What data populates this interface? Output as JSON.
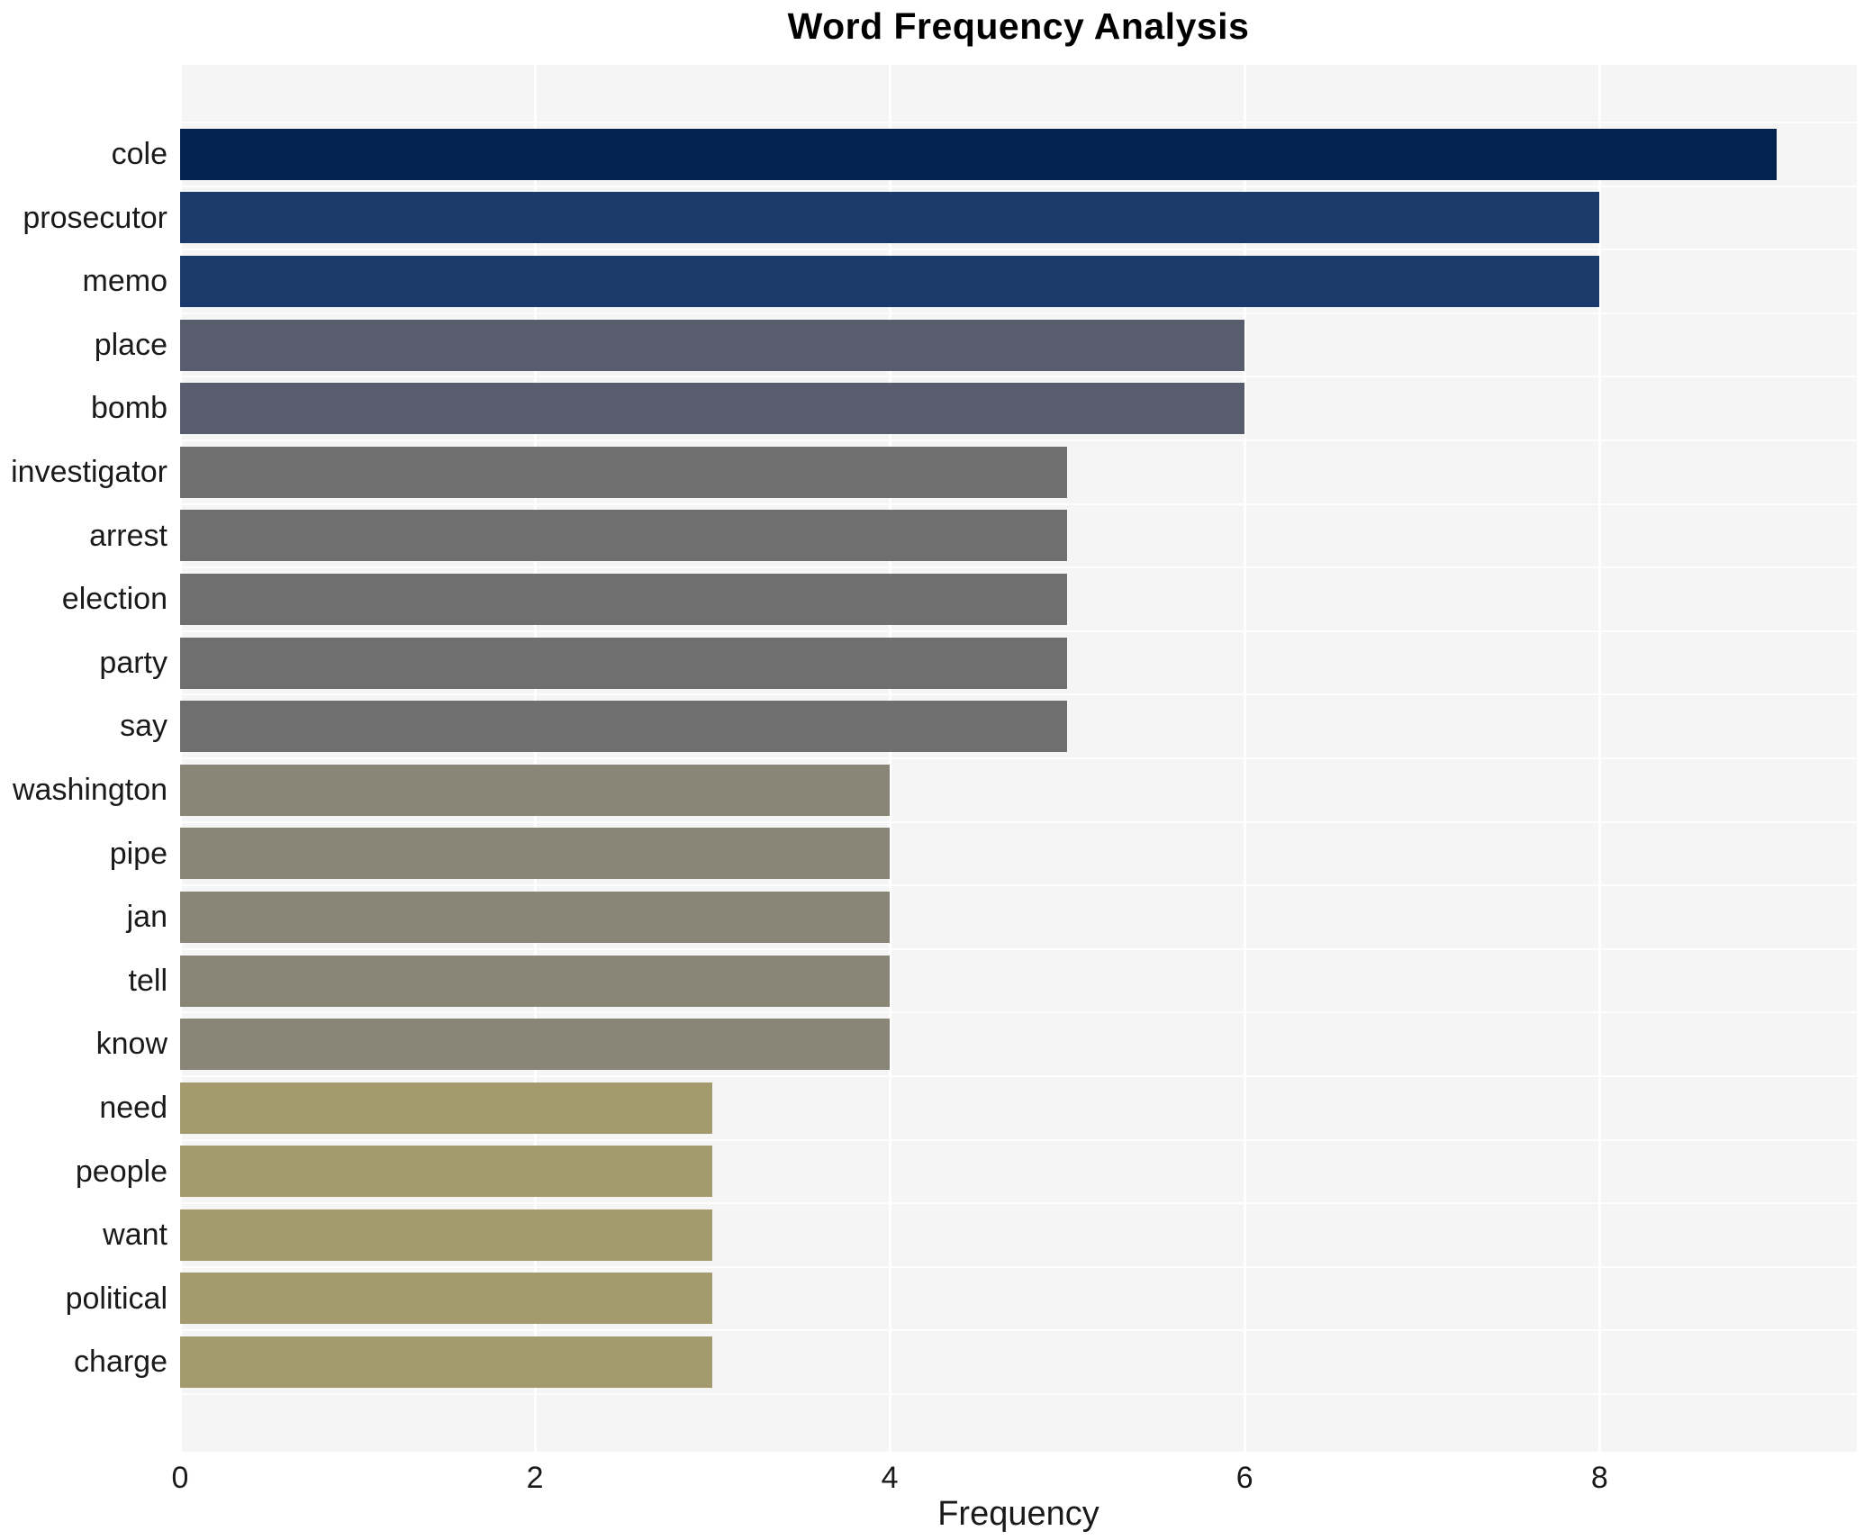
{
  "chart_data": {
    "type": "bar",
    "orientation": "horizontal",
    "title": "Word Frequency Analysis",
    "xlabel": "Frequency",
    "ylabel": "",
    "categories": [
      "cole",
      "prosecutor",
      "memo",
      "place",
      "bomb",
      "investigator",
      "arrest",
      "election",
      "party",
      "say",
      "washington",
      "pipe",
      "jan",
      "tell",
      "know",
      "need",
      "people",
      "want",
      "political",
      "charge"
    ],
    "values": [
      9,
      8,
      8,
      6,
      6,
      5,
      5,
      5,
      5,
      5,
      4,
      4,
      4,
      4,
      4,
      3,
      3,
      3,
      3,
      3
    ],
    "bar_colors": [
      "#03234e",
      "#1a3a6c",
      "#1a3a6c",
      "#575d6d",
      "#575d6d",
      "#6f6f70",
      "#6f6f70",
      "#6f6f70",
      "#6f6f70",
      "#6f6f70",
      "#898677",
      "#898677",
      "#898677",
      "#898677",
      "#898677",
      "#a39a6d",
      "#a39a6d",
      "#a39a6d",
      "#a39a6d",
      "#a39a6d"
    ],
    "xlim": [
      0,
      9.45
    ],
    "xticks": [
      0,
      2,
      4,
      6,
      8
    ],
    "grid": true,
    "legend": false,
    "plot_background": "#f5f5f6",
    "grid_color": "#ffffff",
    "page_background": "#ffffff"
  }
}
